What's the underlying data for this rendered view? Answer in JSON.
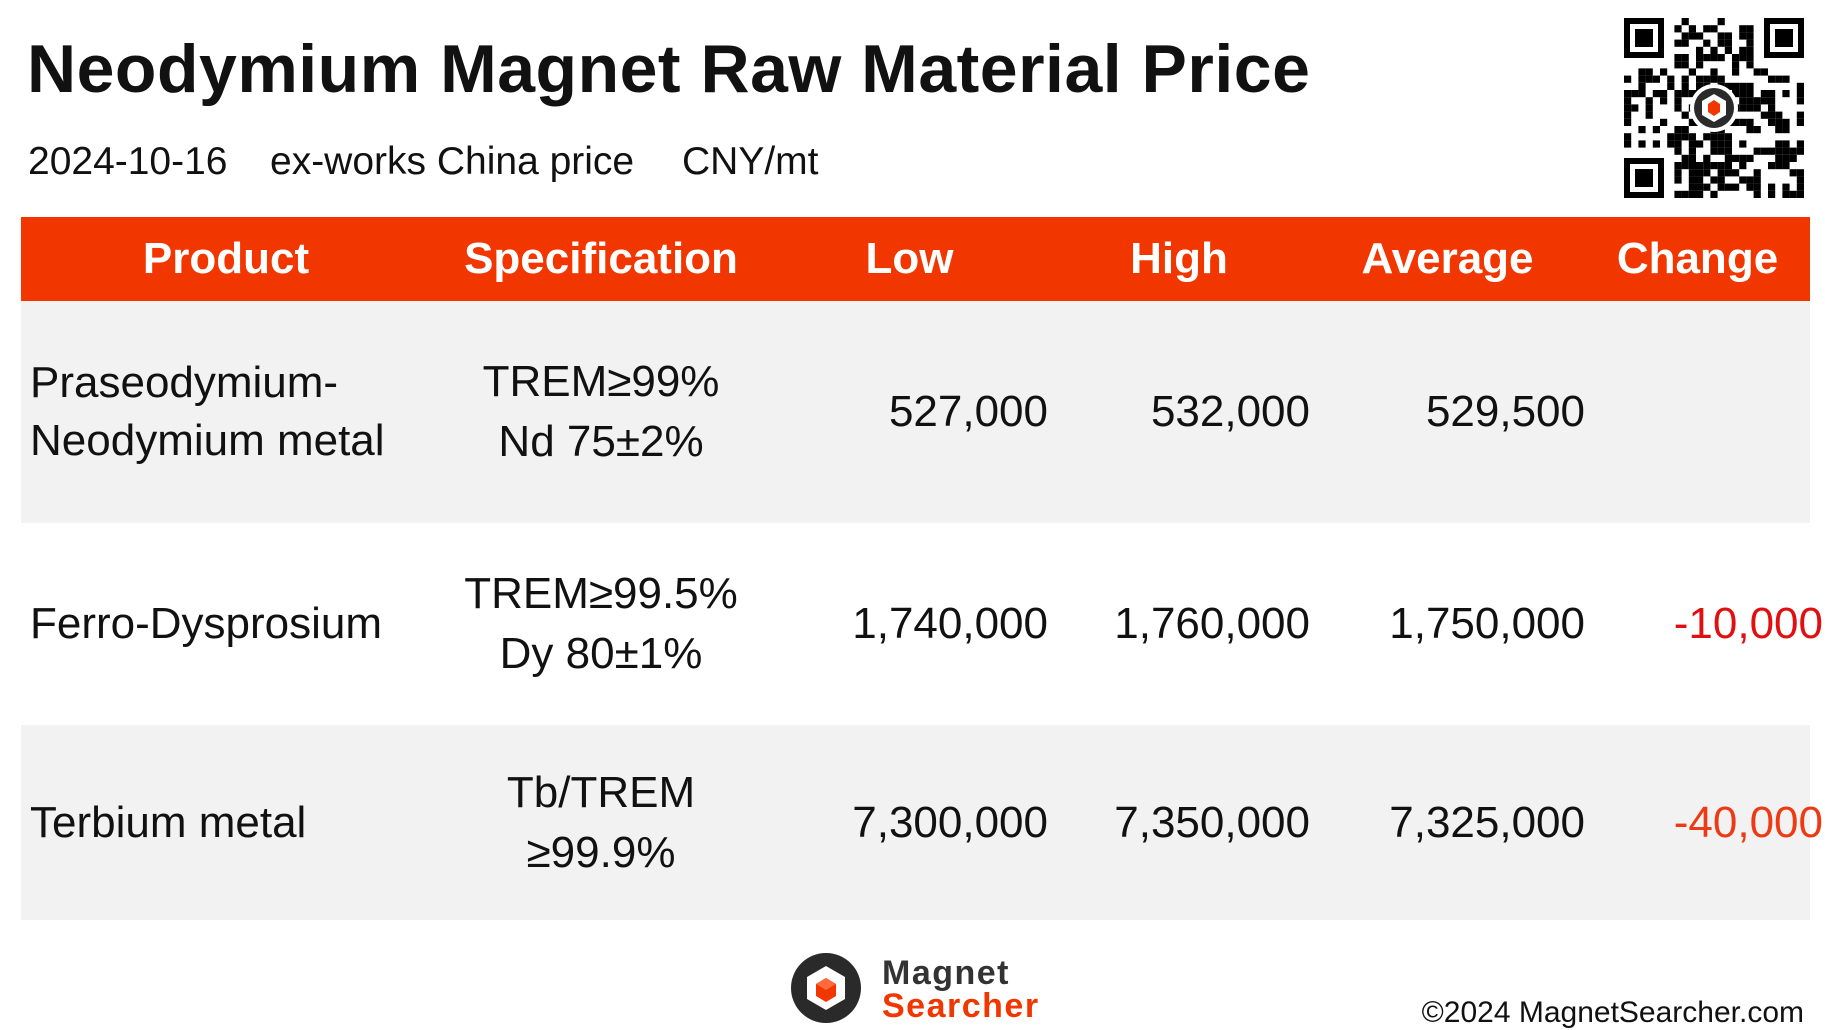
{
  "title": "Neodymium Magnet Raw Material Price",
  "subtitle": {
    "date": "2024-10-16",
    "basis": "ex-works China price",
    "unit": "CNY/mt"
  },
  "table": {
    "headers": {
      "product": "Product",
      "specification": "Specification",
      "low": "Low",
      "high": "High",
      "average": "Average",
      "change": "Change"
    },
    "rows": [
      {
        "product": "Praseodymium-\nNeodymium metal",
        "specification": "TREM≥99%\nNd 75±2%",
        "low": "527,000",
        "high": "532,000",
        "average": "529,500",
        "change": ""
      },
      {
        "product": "Ferro-Dysprosium",
        "specification": "TREM≥99.5%\nDy 80±1%",
        "low": "1,740,000",
        "high": "1,760,000",
        "average": "1,750,000",
        "change": "-10,000"
      },
      {
        "product": "Terbium metal",
        "specification": "Tb/TREM\n≥99.9%",
        "low": "7,300,000",
        "high": "7,350,000",
        "average": "7,325,000",
        "change": "-40,000"
      }
    ]
  },
  "logo": {
    "line1": "Magnet",
    "line2": "Searcher"
  },
  "copyright": "©2024 MagnetSearcher.com",
  "colors": {
    "accent": "#f13600",
    "negative_change_1": "#e01010",
    "negative_change_2": "#ee3a14",
    "row_shade": "#f2f2f2"
  },
  "icons": {
    "qr": "qr-code-icon",
    "logo": "magnet-searcher-logo-icon"
  }
}
